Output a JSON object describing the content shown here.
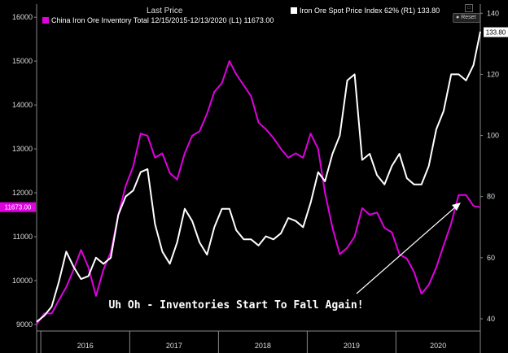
{
  "header": {
    "title": "Last Price",
    "legend_left": "China Iron Ore Inventory Total 12/15/2015-12/13/2020    (L1) 11673.00",
    "legend_right": "Iron Ore Spot Price Index 62%   (R1) 133.80",
    "reset_label": "Reset"
  },
  "colors": {
    "inventory": "#e000e0",
    "price": "#ffffff",
    "background": "#000000"
  },
  "icons": {
    "reset": "circle-icon",
    "options": "square-checkbox-icon"
  },
  "chart_data": {
    "type": "line",
    "annotation": "Uh Oh - Inventories Start To Fall Again!",
    "x_tick_labels": [
      "2016",
      "2017",
      "2018",
      "2019",
      "2020"
    ],
    "xlim": [
      "2015-12-15",
      "2020-12-13"
    ],
    "left_axis": {
      "ticks": [
        9000,
        10000,
        11000,
        12000,
        13000,
        14000,
        15000,
        16000
      ],
      "ylim": [
        8850,
        16300
      ]
    },
    "right_axis": {
      "ticks": [
        40,
        60,
        80,
        100,
        120,
        140
      ],
      "ylim": [
        36,
        143
      ]
    },
    "last_value_labels": {
      "left": "11673.00",
      "right": "133.80"
    },
    "series": [
      {
        "axis": "left",
        "x": [
          "2015-12-15",
          "2016-01-15",
          "2016-02-15",
          "2016-03-15",
          "2016-04-15",
          "2016-05-15",
          "2016-06-15",
          "2016-07-15",
          "2016-08-15",
          "2016-09-15",
          "2016-10-15",
          "2016-11-15",
          "2016-12-15",
          "2017-01-15",
          "2017-02-15",
          "2017-03-15",
          "2017-04-15",
          "2017-05-15",
          "2017-06-15",
          "2017-07-15",
          "2017-08-15",
          "2017-09-15",
          "2017-10-15",
          "2017-11-15",
          "2017-12-15",
          "2018-01-15",
          "2018-02-15",
          "2018-03-15",
          "2018-04-15",
          "2018-05-15",
          "2018-06-15",
          "2018-07-15",
          "2018-08-15",
          "2018-09-15",
          "2018-10-15",
          "2018-11-15",
          "2018-12-15",
          "2019-01-15",
          "2019-02-15",
          "2019-03-15",
          "2019-04-15",
          "2019-05-15",
          "2019-06-15",
          "2019-07-15",
          "2019-08-15",
          "2019-09-15",
          "2019-10-15",
          "2019-11-15",
          "2019-12-15",
          "2020-01-15",
          "2020-02-15",
          "2020-03-15",
          "2020-04-15",
          "2020-05-15",
          "2020-06-15",
          "2020-07-15",
          "2020-08-15",
          "2020-09-15",
          "2020-10-15",
          "2020-11-15",
          "2020-12-13"
        ],
        "y": [
          9000,
          9250,
          9250,
          9550,
          9850,
          10250,
          10700,
          10300,
          9650,
          10250,
          10650,
          11500,
          12150,
          12600,
          13350,
          13300,
          12800,
          12900,
          12450,
          12300,
          12900,
          13300,
          13400,
          13800,
          14300,
          14500,
          15000,
          14700,
          14450,
          14200,
          13600,
          13450,
          13250,
          13000,
          12800,
          12900,
          12800,
          13350,
          13000,
          12000,
          11200,
          10600,
          10750,
          11000,
          11650,
          11500,
          11550,
          11200,
          11100,
          10600,
          10500,
          10200,
          9700,
          9900,
          10300,
          10800,
          11300,
          11950,
          11950,
          11700,
          11673
        ]
      },
      {
        "axis": "right",
        "x": [
          "2015-12-15",
          "2016-01-15",
          "2016-02-15",
          "2016-03-15",
          "2016-04-15",
          "2016-05-15",
          "2016-06-15",
          "2016-07-15",
          "2016-08-15",
          "2016-09-15",
          "2016-10-15",
          "2016-11-15",
          "2016-12-15",
          "2017-01-15",
          "2017-02-15",
          "2017-03-15",
          "2017-04-15",
          "2017-05-15",
          "2017-06-15",
          "2017-07-15",
          "2017-08-15",
          "2017-09-15",
          "2017-10-15",
          "2017-11-15",
          "2017-12-15",
          "2018-01-15",
          "2018-02-15",
          "2018-03-15",
          "2018-04-15",
          "2018-05-15",
          "2018-06-15",
          "2018-07-15",
          "2018-08-15",
          "2018-09-15",
          "2018-10-15",
          "2018-11-15",
          "2018-12-15",
          "2019-01-15",
          "2019-02-15",
          "2019-03-15",
          "2019-04-15",
          "2019-05-15",
          "2019-06-15",
          "2019-07-15",
          "2019-08-15",
          "2019-09-15",
          "2019-10-15",
          "2019-11-15",
          "2019-12-15",
          "2020-01-15",
          "2020-02-15",
          "2020-03-15",
          "2020-04-15",
          "2020-05-15",
          "2020-06-15",
          "2020-07-15",
          "2020-08-15",
          "2020-09-15",
          "2020-10-15",
          "2020-11-15",
          "2020-12-13"
        ],
        "y": [
          39,
          41,
          44,
          52,
          62,
          57,
          53,
          54,
          60,
          58,
          60,
          74,
          80,
          82,
          88,
          89,
          71,
          62,
          58,
          65,
          76,
          72,
          65,
          61,
          70,
          76,
          76,
          69,
          66,
          66,
          64,
          67,
          66,
          68,
          73,
          72,
          70,
          78,
          88,
          85,
          94,
          100,
          118,
          120,
          92,
          94,
          87,
          84,
          90,
          94,
          86,
          84,
          84,
          90,
          102,
          108,
          120,
          120,
          118,
          123,
          134
        ]
      }
    ]
  }
}
